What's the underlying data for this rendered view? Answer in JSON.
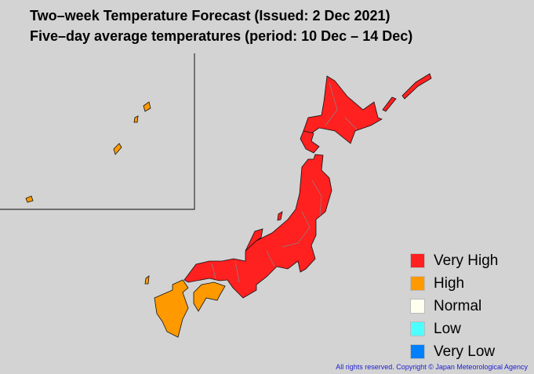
{
  "title": "Two–week Temperature Forecast (Issued: 2 Dec 2021)",
  "subtitle": "Five–day average temperatures (period: 10 Dec – 14 Dec)",
  "legend": [
    {
      "label": "Very High",
      "color": "#ff2020"
    },
    {
      "label": "High",
      "color": "#ff9900"
    },
    {
      "label": "Normal",
      "color": "#fffff0"
    },
    {
      "label": "Low",
      "color": "#4dffff"
    },
    {
      "label": "Very Low",
      "color": "#0080ff"
    }
  ],
  "regions": {
    "hokkaido": "Very High",
    "tohoku": "Very High",
    "kanto_koshin": "Very High",
    "hokuriku": "Very High",
    "tokai": "Very High",
    "kinki": "Very High",
    "chugoku": "Very High",
    "shikoku": "High",
    "kyushu": "High",
    "okinawa_amami": "High"
  },
  "copyright": "All rights reserved. Copyright © Japan Meteorological Agency"
}
